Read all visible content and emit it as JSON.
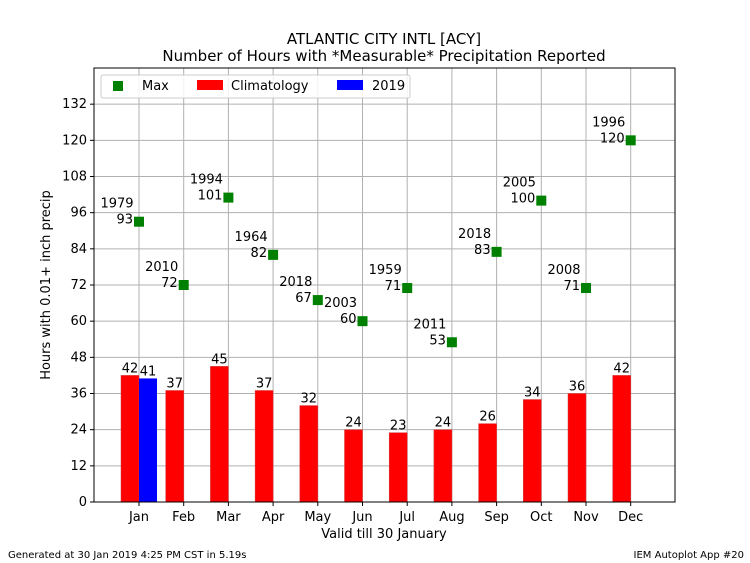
{
  "chart_data": {
    "type": "bar",
    "title": "ATLANTIC CITY INTL [ACY]",
    "subtitle": "Number of Hours with *Measurable* Precipitation Reported",
    "xlabel": "Valid till 30 January",
    "ylabel": "Hours with 0.01+ inch precip",
    "categories": [
      "Jan",
      "Feb",
      "Mar",
      "Apr",
      "May",
      "Jun",
      "Jul",
      "Aug",
      "Sep",
      "Oct",
      "Nov",
      "Dec"
    ],
    "ylim": [
      0,
      144
    ],
    "yticks": [
      0,
      12,
      24,
      36,
      48,
      60,
      72,
      84,
      96,
      108,
      120,
      132
    ],
    "grid": true,
    "legend_position": "top-left",
    "series": [
      {
        "name": "Max",
        "kind": "scatter",
        "color": "#008000",
        "values": [
          93,
          72,
          101,
          82,
          67,
          60,
          71,
          53,
          83,
          100,
          71,
          120
        ],
        "years": [
          "1979",
          "2010",
          "1994",
          "1964",
          "2018",
          "2003",
          "1959",
          "2011",
          "2018",
          "2005",
          "2008",
          "1996"
        ]
      },
      {
        "name": "Climatology",
        "kind": "bar",
        "color": "#ff0000",
        "values": [
          42,
          37,
          45,
          37,
          32,
          24,
          23,
          24,
          26,
          34,
          36,
          42
        ]
      },
      {
        "name": "2019",
        "kind": "bar",
        "color": "#0000ff",
        "values": [
          41,
          null,
          null,
          null,
          null,
          null,
          null,
          null,
          null,
          null,
          null,
          null
        ]
      }
    ]
  },
  "footer": {
    "left": "Generated at 30 Jan 2019 4:25 PM CST in 5.19s",
    "right": "IEM Autoplot App #20"
  }
}
